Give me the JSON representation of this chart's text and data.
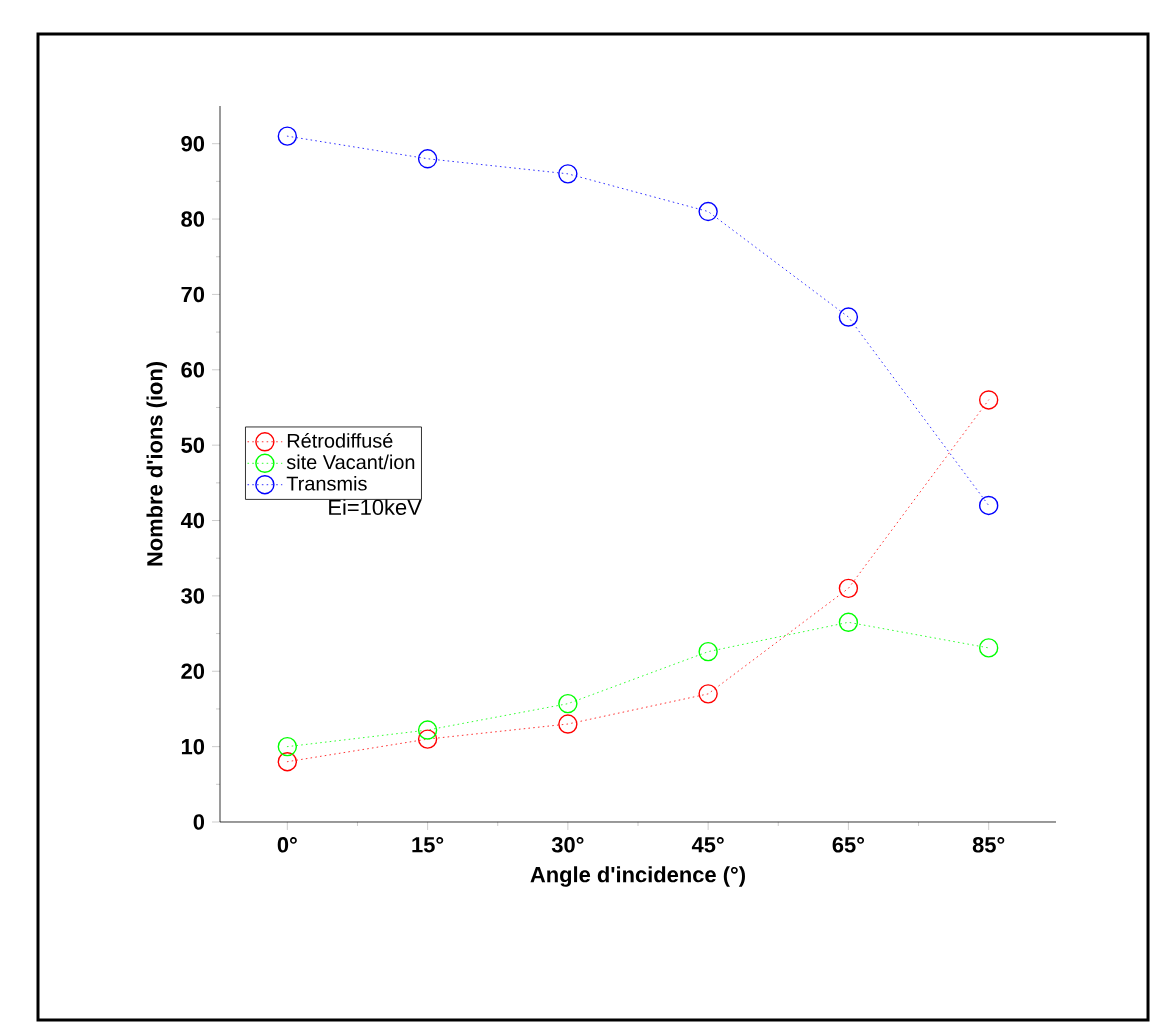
{
  "chart_data": {
    "type": "line",
    "xlabel": "Angle d'incidence (°)",
    "ylabel": "Nombre d'ions (ion)",
    "categories": [
      "0°",
      "15°",
      "30°",
      "45°",
      "65°",
      "85°"
    ],
    "series": [
      {
        "name": "Rétrodiffusé",
        "color": "#ff0000",
        "values": [
          8,
          11,
          13,
          17,
          31,
          56
        ]
      },
      {
        "name": "site Vacant/ion",
        "color": "#00ff00",
        "values": [
          10,
          12.2,
          15.7,
          22.6,
          26.5,
          23.1
        ]
      },
      {
        "name": "Transmis",
        "color": "#0000ff",
        "values": [
          91,
          88,
          86,
          81,
          67,
          42
        ]
      }
    ],
    "ylim": [
      0,
      95
    ],
    "yticks": [
      0,
      10,
      20,
      30,
      40,
      50,
      60,
      70,
      80,
      90
    ],
    "annotations": [
      "Ei=10keV"
    ],
    "legend": "left",
    "marker": "circle",
    "line_style": "dotted",
    "grid": false
  }
}
